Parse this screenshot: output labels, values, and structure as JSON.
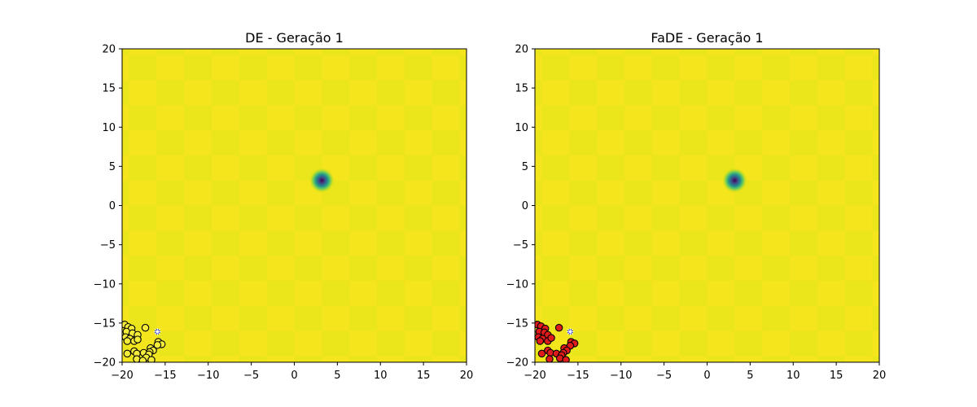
{
  "colors": {
    "background": "#ffffff",
    "plane_light": "#f4e51c",
    "plane_dark": "#ebe51b",
    "minimum_core": "#440154",
    "de_points": "#f4ec3a",
    "fade_points": "#e01b1b",
    "marker": "#1f32d6",
    "marker_star": "#ffffff"
  },
  "chart_data": [
    {
      "type": "scatter",
      "title": "DE - Geração 1",
      "xlim": [
        -20,
        20
      ],
      "ylim": [
        -20,
        20
      ],
      "xticks": [
        -20,
        -15,
        -10,
        -5,
        0,
        5,
        10,
        15,
        20
      ],
      "yticks": [
        -20,
        -15,
        -10,
        -5,
        0,
        5,
        10,
        15,
        20
      ],
      "xtick_labels": [
        "−20",
        "−15",
        "−10",
        "−5",
        "0",
        "5",
        "10",
        "15",
        "20"
      ],
      "ytick_labels": [
        "−20",
        "−15",
        "−10",
        "−5",
        "0",
        "5",
        "10",
        "15",
        "20"
      ],
      "background": {
        "type": "heatmap",
        "minimum": [
          3.2,
          3.2
        ],
        "checker_cell": 3.2
      },
      "points": [
        [
          -19.7,
          -15.2
        ],
        [
          -19.3,
          -15.5
        ],
        [
          -18.9,
          -15.7
        ],
        [
          -19.5,
          -16.1
        ],
        [
          -18.8,
          -16.3
        ],
        [
          -18.2,
          -16.5
        ],
        [
          -19.6,
          -16.8
        ],
        [
          -19.1,
          -17.0
        ],
        [
          -18.6,
          -17.3
        ],
        [
          -18.2,
          -17.1
        ],
        [
          -19.4,
          -17.3
        ],
        [
          -17.3,
          -15.6
        ],
        [
          -15.8,
          -17.4
        ],
        [
          -15.4,
          -17.7
        ],
        [
          -15.9,
          -17.8
        ],
        [
          -16.7,
          -18.2
        ],
        [
          -16.4,
          -18.5
        ],
        [
          -16.8,
          -18.7
        ],
        [
          -18.6,
          -18.6
        ],
        [
          -19.4,
          -18.9
        ],
        [
          -18.3,
          -18.9
        ],
        [
          -17.5,
          -18.8
        ],
        [
          -16.9,
          -19.0
        ],
        [
          -17.2,
          -19.4
        ],
        [
          -18.3,
          -19.6
        ],
        [
          -17.6,
          -19.8
        ],
        [
          -16.6,
          -19.7
        ]
      ],
      "best": [
        -15.9,
        -16.1
      ]
    },
    {
      "type": "scatter",
      "title": "FaDE - Geração 1",
      "xlim": [
        -20,
        20
      ],
      "ylim": [
        -20,
        20
      ],
      "xticks": [
        -20,
        -15,
        -10,
        -5,
        0,
        5,
        10,
        15,
        20
      ],
      "yticks": [
        -20,
        -15,
        -10,
        -5,
        0,
        5,
        10,
        15,
        20
      ],
      "xtick_labels": [
        "−20",
        "−15",
        "−10",
        "−5",
        "0",
        "5",
        "10",
        "15",
        "20"
      ],
      "ytick_labels": [
        "−20",
        "−15",
        "−10",
        "−5",
        "0",
        "5",
        "10",
        "15",
        "20"
      ],
      "background": {
        "type": "heatmap",
        "minimum": [
          3.2,
          3.2
        ],
        "checker_cell": 3.2
      },
      "points": [
        [
          -19.7,
          -15.2
        ],
        [
          -19.3,
          -15.4
        ],
        [
          -18.8,
          -15.7
        ],
        [
          -19.5,
          -16.1
        ],
        [
          -18.9,
          -16.2
        ],
        [
          -18.5,
          -16.5
        ],
        [
          -19.6,
          -16.8
        ],
        [
          -19.1,
          -17.0
        ],
        [
          -18.5,
          -17.3
        ],
        [
          -18.1,
          -16.9
        ],
        [
          -19.4,
          -17.3
        ],
        [
          -17.2,
          -15.6
        ],
        [
          -15.8,
          -17.4
        ],
        [
          -15.4,
          -17.6
        ],
        [
          -15.9,
          -17.9
        ],
        [
          -16.6,
          -18.2
        ],
        [
          -16.3,
          -18.5
        ],
        [
          -16.7,
          -18.8
        ],
        [
          -18.5,
          -18.5
        ],
        [
          -19.2,
          -18.9
        ],
        [
          -18.2,
          -18.8
        ],
        [
          -17.5,
          -18.9
        ],
        [
          -16.9,
          -19.1
        ],
        [
          -17.1,
          -19.5
        ],
        [
          -18.3,
          -19.6
        ],
        [
          -16.4,
          -19.7
        ]
      ],
      "best": [
        -15.9,
        -16.1
      ]
    }
  ]
}
